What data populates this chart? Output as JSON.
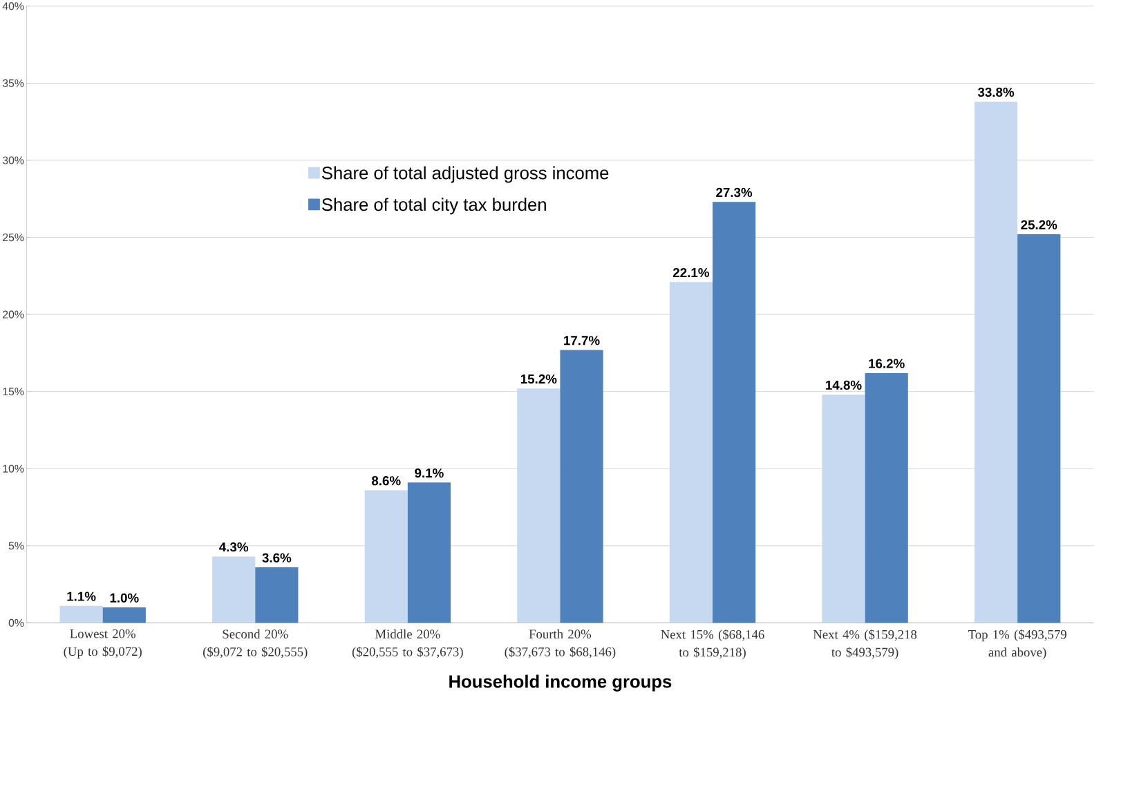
{
  "chart_data": {
    "type": "bar",
    "xlabel": "Household income groups",
    "categories": [
      "Lowest 20% (Up to $9,072)",
      "Second 20% ($9,072 to $20,555)",
      "Middle 20% ($20,555 to $37,673)",
      "Fourth 20% ($37,673 to $68,146)",
      "Next 15% ($68,146 to $159,218)",
      "Next 4% ($159,218 to $493,579)",
      "Top 1% ($493,579 and above)"
    ],
    "series": [
      {
        "name": "Share of total adjusted gross income",
        "color": "#c6d9f1",
        "values": [
          1.1,
          4.3,
          8.6,
          15.2,
          22.1,
          14.8,
          33.8
        ],
        "value_labels": [
          "1.1%",
          "4.3%",
          "8.6%",
          "15.2%",
          "22.1%",
          "14.8%",
          "33.8%"
        ]
      },
      {
        "name": "Share of total city tax burden",
        "color": "#4f81bd",
        "values": [
          1.0,
          3.6,
          9.1,
          17.7,
          27.3,
          16.2,
          25.2
        ],
        "value_labels": [
          "1.0%",
          "3.6%",
          "9.1%",
          "17.7%",
          "27.3%",
          "16.2%",
          "25.2%"
        ]
      }
    ],
    "ylim": [
      0,
      40
    ],
    "yticks": [
      {
        "value": 0,
        "label": "0%"
      },
      {
        "value": 5,
        "label": "5%"
      },
      {
        "value": 10,
        "label": "10%"
      },
      {
        "value": 15,
        "label": "15%"
      },
      {
        "value": 20,
        "label": "20%"
      },
      {
        "value": 25,
        "label": "25%"
      },
      {
        "value": 30,
        "label": "30%"
      },
      {
        "value": 35,
        "label": "35%"
      },
      {
        "value": 40,
        "label": "40%"
      }
    ],
    "grid": "y",
    "legend": "top"
  }
}
